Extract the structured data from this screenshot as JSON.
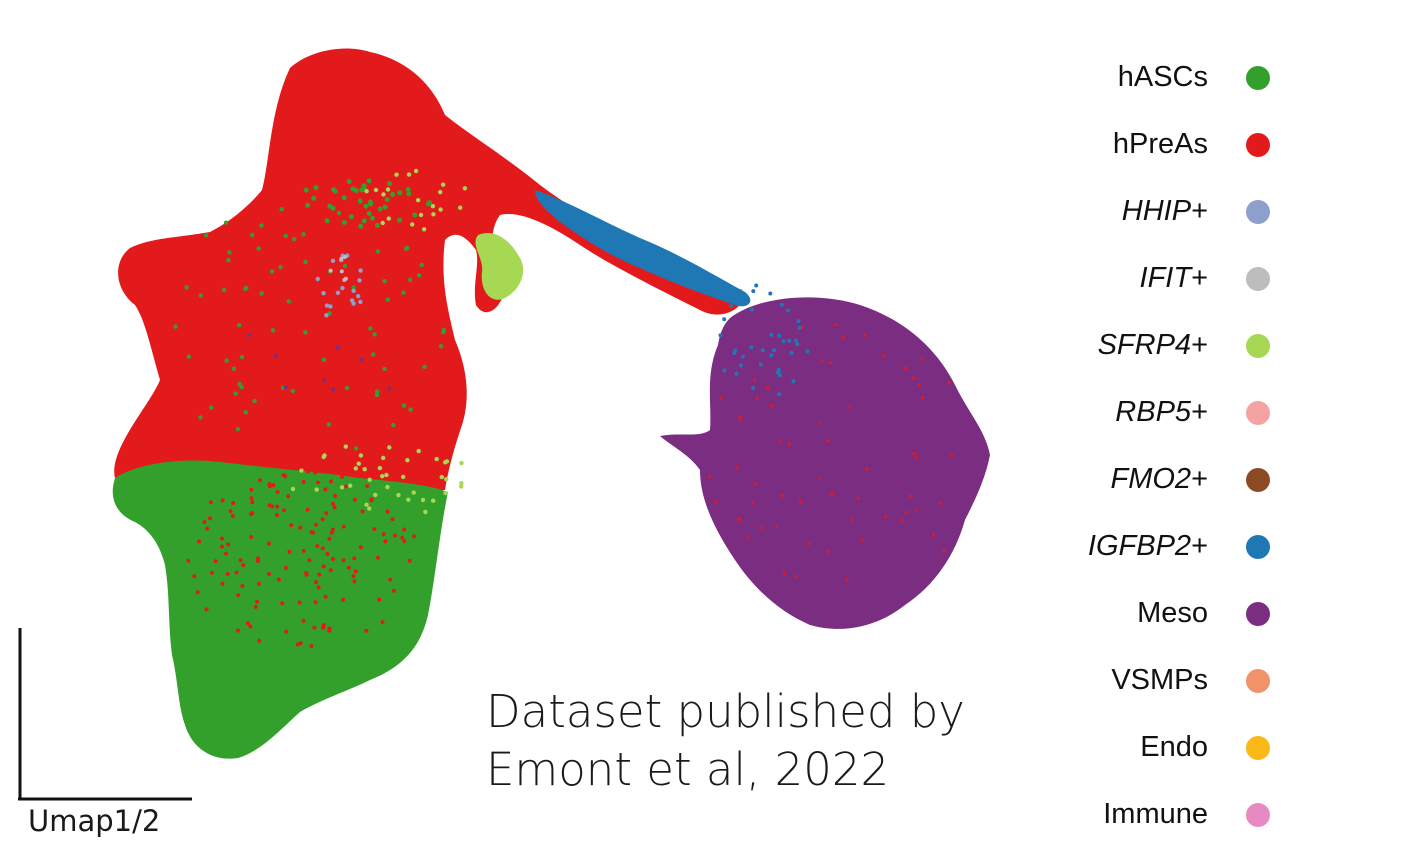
{
  "chart_data": {
    "type": "scatter",
    "xlabel": "Umap1/2",
    "ylabel": "",
    "grid": false,
    "legend_placement": "right",
    "annotation": [
      "Dataset published by",
      "Emont et al, 2022"
    ],
    "series": [
      {
        "name": "hASCs",
        "gene": "",
        "suffix": "",
        "color": "#33a02c"
      },
      {
        "name": "hPreAs",
        "gene": "",
        "suffix": "",
        "color": "#e31a1c"
      },
      {
        "name": "HHIP+",
        "gene": "HHIP",
        "suffix": "+",
        "color": "#8da0cb"
      },
      {
        "name": "IFIT+",
        "gene": "IFIT",
        "suffix": "+",
        "color": "#bdbdbd"
      },
      {
        "name": "SFRP4+",
        "gene": "SFRP4",
        "suffix": "+",
        "color": "#a6d854"
      },
      {
        "name": "RBP5+",
        "gene": "RBP5",
        "suffix": "+",
        "color": "#f4a3a0"
      },
      {
        "name": "FMO2+",
        "gene": "FMO2",
        "suffix": "+",
        "color": "#8c4a24"
      },
      {
        "name": "IGFBP2+",
        "gene": "IGFBP2",
        "suffix": "+",
        "color": "#1f78b4"
      },
      {
        "name": "Meso",
        "gene": "",
        "suffix": "",
        "color": "#7b2d82"
      },
      {
        "name": "VSMPs",
        "gene": "",
        "suffix": "",
        "color": "#f0936a"
      },
      {
        "name": "Endo",
        "gene": "",
        "suffix": "",
        "color": "#fbb917"
      },
      {
        "name": "Immune",
        "gene": "",
        "suffix": "",
        "color": "#e78ac3"
      }
    ]
  }
}
